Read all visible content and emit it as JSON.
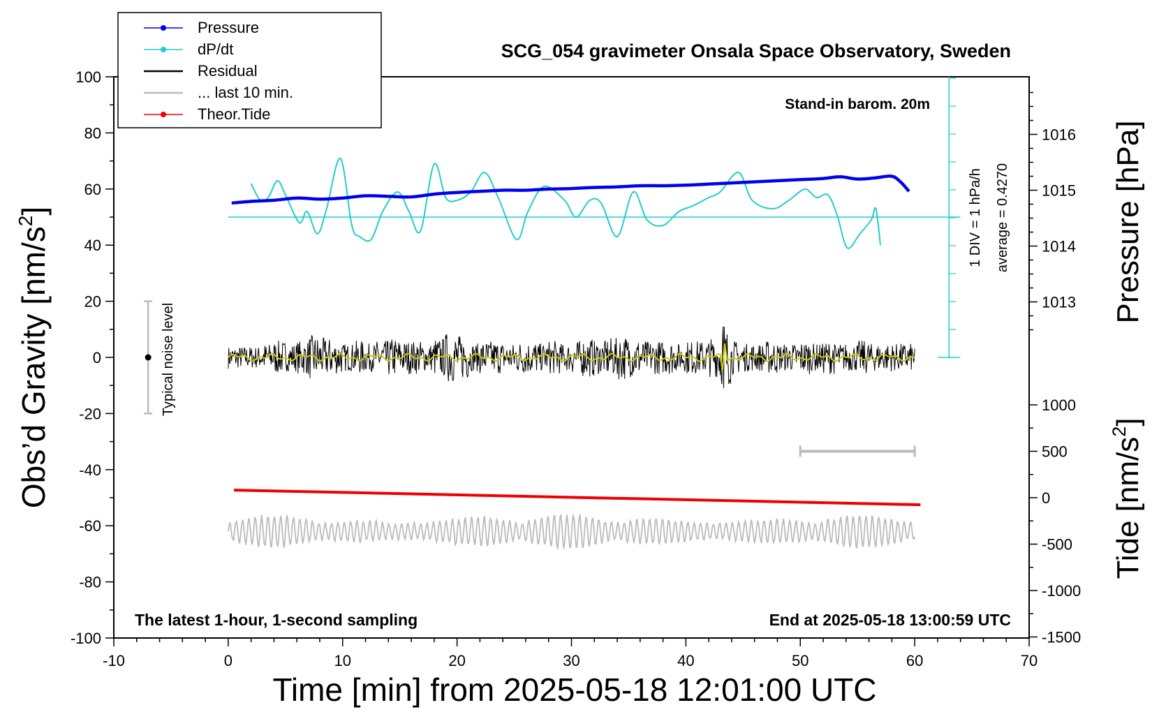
{
  "chart_data": {
    "type": "line",
    "title": "SCG_054 gravimeter Onsala Space Observatory, Sweden",
    "xlabel": "Time [min] from 2025-05-18 12:01:00 UTC",
    "ylabel_left": "Obs’d Gravity [nm/s",
    "ylabel_left_sup": "2",
    "ylabel_left_close": "]",
    "ylabel_right_top": "Pressure [hPa]",
    "ylabel_right_bottom": "Tide [nm/s",
    "ylabel_right_bottom_sup": "2",
    "ylabel_right_bottom_close": "]",
    "xlim": [
      -10,
      70
    ],
    "ylim_left": [
      -100,
      100
    ],
    "x_ticks": [
      -10,
      0,
      10,
      20,
      30,
      40,
      50,
      60,
      70
    ],
    "y_ticks_left": [
      100,
      80,
      60,
      40,
      20,
      0,
      -20,
      -40,
      -60,
      -80,
      -100
    ],
    "pressure_ticks": [
      1016,
      1015,
      1014,
      1013
    ],
    "tide_ticks": [
      1000,
      500,
      0,
      -500,
      -1000,
      -1500
    ],
    "annotations": {
      "barometer": "Stand-in barom. 20m",
      "sampling": "The latest 1-hour, 1-second sampling",
      "end_time": "End at 2025-05-18 13:00:59 UTC",
      "noise_label": "Typical noise level",
      "div_label": "1 DIV = 1 hPa/h",
      "average_label": "average = 0.4270"
    },
    "legend": {
      "placement": "top-left",
      "entries": [
        {
          "label": "Pressure",
          "color": "#0000ee",
          "marker": true
        },
        {
          "label": "dP/dt",
          "color": "#22cccc",
          "marker": true
        },
        {
          "label": "Residual",
          "color": "#000000",
          "marker": false
        },
        {
          "label": "... last 10 min.",
          "color": "#bbbbbb",
          "marker": false
        },
        {
          "label": "Theor.Tide",
          "color": "#ee0000",
          "marker": true
        }
      ]
    },
    "colors": {
      "pressure": "#0000ee",
      "dpdt": "#22cccc",
      "residual": "#000000",
      "residual_smooth": "#cccc00",
      "last10": "#bbbbbb",
      "tide": "#ee0000",
      "noise_bar": "#bbbbbb"
    },
    "series": [
      {
        "name": "Pressure",
        "x": [
          0.3,
          2,
          4,
          6,
          8,
          10,
          12,
          14,
          16,
          18,
          20,
          22,
          24,
          26,
          28,
          30,
          32,
          34,
          36,
          38,
          40,
          42,
          44,
          46,
          48,
          50,
          52,
          53.5,
          55,
          56.5,
          58,
          58.8,
          59.5
        ],
        "y": [
          1014.77,
          1014.8,
          1014.82,
          1014.86,
          1014.84,
          1014.86,
          1014.9,
          1014.89,
          1014.88,
          1014.93,
          1014.96,
          1014.98,
          1015.0,
          1015.0,
          1015.02,
          1015.03,
          1015.05,
          1015.06,
          1015.08,
          1015.08,
          1015.09,
          1015.11,
          1015.13,
          1015.15,
          1015.17,
          1015.19,
          1015.21,
          1015.24,
          1015.2,
          1015.22,
          1015.25,
          1015.14,
          1014.98
        ]
      },
      {
        "name": "dP/dt",
        "x": [
          2,
          2.8,
          3.5,
          4.3,
          5,
          6.2,
          6.9,
          7.8,
          8.6,
          9.8,
          10.8,
          11.5,
          12.5,
          13.5,
          14.8,
          15.8,
          16.8,
          18,
          19,
          20,
          21.2,
          22.4,
          23.6,
          25.2,
          26.2,
          27.6,
          29.4,
          30.4,
          31.6,
          32.6,
          34,
          35.4,
          36.6,
          38,
          39.4,
          40.6,
          42,
          43,
          44.6,
          45.8,
          47.6,
          49,
          50.4,
          51.4,
          52.4,
          53.2,
          54.1,
          55.2,
          56.2,
          56.6,
          57
        ],
        "y": [
          1.2,
          0.6,
          0.7,
          1.3,
          0.8,
          -0.2,
          0.2,
          -0.6,
          0.3,
          2.1,
          -0.3,
          -0.7,
          -0.8,
          0.2,
          0.9,
          0.2,
          -0.5,
          1.9,
          0.7,
          0.6,
          0.9,
          1.6,
          0.7,
          -0.8,
          0.2,
          1.1,
          0.6,
          0.0,
          0.6,
          0.5,
          -0.7,
          0.9,
          -0.1,
          -0.3,
          0.2,
          0.4,
          0.7,
          0.9,
          1.6,
          0.6,
          0.3,
          0.6,
          1.0,
          0.7,
          0.8,
          0.1,
          -1.1,
          -0.6,
          -0.1,
          0.3,
          -1.0
        ]
      },
      {
        "name": "Residual",
        "x_start": 0,
        "x_end": 60,
        "envelope": [
          4,
          4,
          4,
          5,
          6,
          5,
          6,
          8,
          7,
          6,
          5,
          6,
          5,
          6,
          7,
          6,
          6,
          5,
          7,
          9,
          8,
          5,
          6,
          6,
          5,
          6,
          6,
          5,
          6,
          5,
          6,
          7,
          6,
          7,
          8,
          7,
          6,
          6,
          6,
          5,
          6,
          6,
          7,
          10,
          6,
          5,
          5,
          6,
          5,
          5,
          6,
          5,
          6,
          5,
          5,
          6,
          5,
          5,
          5,
          5
        ]
      },
      {
        "name": "... last 10 min.",
        "x_start": 0,
        "x_end": 60,
        "center": -62,
        "amplitude": 3.5
      },
      {
        "name": "Theor.Tide",
        "x": [
          0.5,
          60.5
        ],
        "y": [
          82,
          -76
        ]
      }
    ],
    "noise_level": {
      "x": -7,
      "ymin": -20,
      "ymax": 20
    },
    "scale_bar": {
      "x": [
        50,
        60
      ],
      "tide": 500
    }
  }
}
